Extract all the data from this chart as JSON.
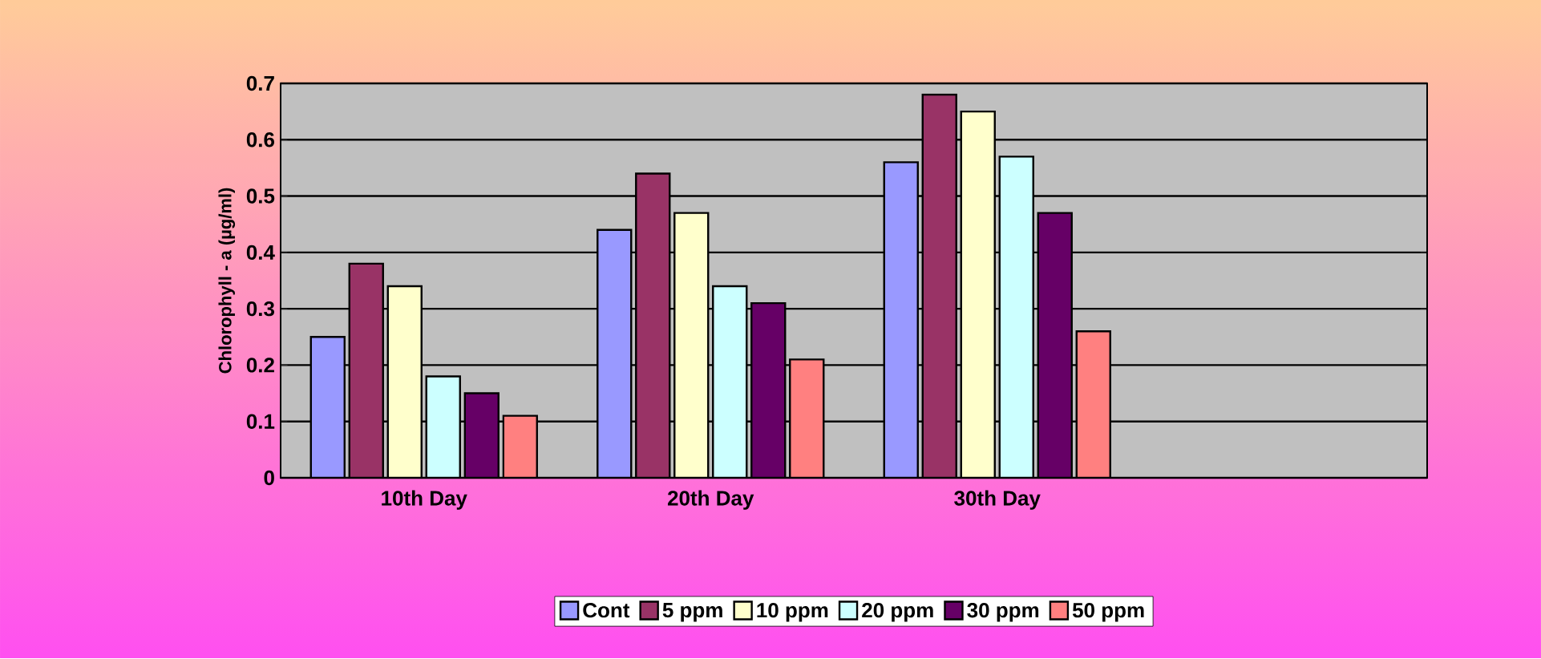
{
  "chart_data": {
    "type": "bar",
    "ylabel": "Chlorophyll - a (µg/ml)",
    "categories": [
      "10th Day",
      "20th Day",
      "30th Day",
      null
    ],
    "series": [
      {
        "name": "Cont",
        "color": "#9999ff",
        "values": [
          0.25,
          0.44,
          0.56,
          null
        ]
      },
      {
        "name": "5 ppm",
        "color": "#993366",
        "values": [
          0.38,
          0.54,
          0.68,
          null
        ]
      },
      {
        "name": "10 ppm",
        "color": "#ffffcc",
        "values": [
          0.34,
          0.47,
          0.65,
          null
        ]
      },
      {
        "name": "20 ppm",
        "color": "#ccffff",
        "values": [
          0.18,
          0.34,
          0.57,
          null
        ]
      },
      {
        "name": "30 ppm",
        "color": "#660066",
        "values": [
          0.15,
          0.31,
          0.47,
          null
        ]
      },
      {
        "name": "50 ppm",
        "color": "#ff8080",
        "values": [
          0.11,
          0.21,
          0.26,
          null
        ]
      }
    ],
    "ylim": [
      0,
      0.7
    ],
    "yticks": [
      0,
      0.1,
      0.2,
      0.3,
      0.4,
      0.5,
      0.6,
      0.7
    ],
    "grid": "y",
    "legend": "bottom"
  }
}
